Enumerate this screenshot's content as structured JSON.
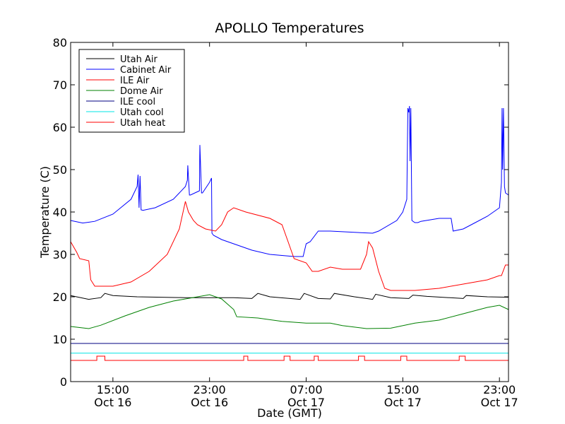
{
  "chart_data": {
    "type": "line",
    "title": "APOLLO Temperatures",
    "xlabel": "Date (GMT)",
    "ylabel": "Temperature (C)",
    "xlim": [
      "Oct 16 11:30",
      "Oct 17 23:45"
    ],
    "ylim": [
      0,
      80
    ],
    "grid": false,
    "legend_position": "top-left",
    "x_ticks": [
      {
        "time": "Oct 16 15:00",
        "label_top": "15:00",
        "label_bottom": "Oct 16"
      },
      {
        "time": "Oct 16 23:00",
        "label_top": "23:00",
        "label_bottom": "Oct 16"
      },
      {
        "time": "Oct 17 07:00",
        "label_top": "07:00",
        "label_bottom": "Oct 17"
      },
      {
        "time": "Oct 17 15:00",
        "label_top": "15:00",
        "label_bottom": "Oct 17"
      },
      {
        "time": "Oct 17 23:00",
        "label_top": "23:00",
        "label_bottom": "Oct 17"
      }
    ],
    "y_ticks": [
      "0",
      "10",
      "20",
      "30",
      "40",
      "50",
      "60",
      "70",
      "80"
    ],
    "series": [
      {
        "name": "Utah Air",
        "color": "#000000",
        "x": [
          "Oct 16 11:30",
          "Oct 16 13:00",
          "Oct 16 14:00",
          "Oct 16 14:20",
          "Oct 16 15:00",
          "Oct 16 17:00",
          "Oct 16 19:00",
          "Oct 16 21:00",
          "Oct 16 23:00",
          "Oct 17 01:00",
          "Oct 17 02:30",
          "Oct 17 03:00",
          "Oct 17 04:00",
          "Oct 17 06:30",
          "Oct 17 06:50",
          "Oct 17 08:00",
          "Oct 17 09:00",
          "Oct 17 09:20",
          "Oct 17 11:00",
          "Oct 17 12:30",
          "Oct 17 12:45",
          "Oct 17 14:00",
          "Oct 17 15:30",
          "Oct 17 15:50",
          "Oct 17 17:00",
          "Oct 17 20:00",
          "Oct 17 20:15",
          "Oct 17 22:00",
          "Oct 17 23:45"
        ],
        "y": [
          20.3,
          19.4,
          19.8,
          20.8,
          20.3,
          20.0,
          19.9,
          19.8,
          19.8,
          19.8,
          19.6,
          20.8,
          20.0,
          19.4,
          20.8,
          19.6,
          19.5,
          20.8,
          20.0,
          19.4,
          20.6,
          19.8,
          19.6,
          20.4,
          20.1,
          19.6,
          20.3,
          20.0,
          19.9
        ]
      },
      {
        "name": "Cabinet Air",
        "color": "#0000ff",
        "x": [
          "Oct 16 11:30",
          "Oct 16 12:30",
          "Oct 16 13:30",
          "Oct 16 15:00",
          "Oct 16 16:30",
          "Oct 16 17:00",
          "Oct 16 17:05",
          "Oct 16 17:10",
          "Oct 16 17:15",
          "Oct 16 17:20",
          "Oct 16 17:30",
          "Oct 16 18:30",
          "Oct 16 20:00",
          "Oct 16 21:00",
          "Oct 16 21:10",
          "Oct 16 21:12",
          "Oct 16 21:20",
          "Oct 16 21:25",
          "Oct 16 22:10",
          "Oct 16 22:12",
          "Oct 16 22:20",
          "Oct 16 22:25",
          "Oct 16 23:00",
          "Oct 16 23:10",
          "Oct 16 23:12",
          "Oct 16 23:20",
          "Oct 17 00:00",
          "Oct 17 01:00",
          "Oct 17 02:30",
          "Oct 17 04:00",
          "Oct 17 06:00",
          "Oct 17 06:45",
          "Oct 17 07:00",
          "Oct 17 07:20",
          "Oct 17 08:00",
          "Oct 17 09:00",
          "Oct 17 11:00",
          "Oct 17 12:30",
          "Oct 17 13:00",
          "Oct 17 14:30",
          "Oct 17 15:00",
          "Oct 17 15:20",
          "Oct 17 15:25",
          "Oct 17 15:30",
          "Oct 17 15:33",
          "Oct 17 15:36",
          "Oct 17 15:40",
          "Oct 17 15:45",
          "Oct 17 16:00",
          "Oct 17 16:15",
          "Oct 17 16:30",
          "Oct 17 18:00",
          "Oct 17 19:00",
          "Oct 17 19:10",
          "Oct 17 20:00",
          "Oct 17 21:00",
          "Oct 17 22:00",
          "Oct 17 23:00",
          "Oct 17 23:10",
          "Oct 17 23:13",
          "Oct 17 23:16",
          "Oct 17 23:20",
          "Oct 17 23:25",
          "Oct 17 23:30",
          "Oct 17 23:45"
        ],
        "y": [
          38.0,
          37.4,
          37.8,
          39.5,
          43.0,
          46.0,
          48.8,
          41.0,
          48.5,
          40.5,
          40.4,
          41.0,
          43.0,
          46.0,
          47.5,
          51.0,
          44.0,
          44.0,
          45.0,
          55.8,
          44.5,
          44.5,
          47.0,
          48.0,
          35.0,
          34.5,
          33.5,
          32.5,
          31.0,
          30.0,
          29.5,
          29.5,
          32.5,
          33.0,
          35.5,
          35.5,
          35.2,
          35.0,
          35.5,
          38.0,
          40.0,
          43.0,
          64.5,
          63.5,
          65.0,
          52.0,
          64.5,
          38.0,
          37.5,
          37.5,
          37.8,
          38.5,
          38.5,
          35.5,
          36.0,
          37.5,
          39.0,
          41.0,
          47.0,
          64.5,
          50.0,
          64.5,
          46.0,
          44.5,
          44.0
        ]
      },
      {
        "name": "ILE Air",
        "color": "#ff0000",
        "x": [
          "Oct 16 11:30",
          "Oct 16 12:00",
          "Oct 16 12:15",
          "Oct 16 13:00",
          "Oct 16 13:10",
          "Oct 16 13:30",
          "Oct 16 15:00",
          "Oct 16 16:30",
          "Oct 16 18:00",
          "Oct 16 19:30",
          "Oct 16 20:30",
          "Oct 16 21:00",
          "Oct 16 21:15",
          "Oct 16 21:40",
          "Oct 16 22:00",
          "Oct 16 22:40",
          "Oct 16 23:30",
          "Oct 17 00:00",
          "Oct 17 00:30",
          "Oct 17 01:00",
          "Oct 17 02:00",
          "Oct 17 04:00",
          "Oct 17 05:00",
          "Oct 17 05:30",
          "Oct 17 06:00",
          "Oct 17 07:00",
          "Oct 17 07:30",
          "Oct 17 08:00",
          "Oct 17 09:00",
          "Oct 17 10:00",
          "Oct 17 11:00",
          "Oct 17 11:30",
          "Oct 17 12:00",
          "Oct 17 12:10",
          "Oct 17 12:30",
          "Oct 17 13:00",
          "Oct 17 13:30",
          "Oct 17 14:00",
          "Oct 17 16:00",
          "Oct 17 18:00",
          "Oct 17 20:00",
          "Oct 17 22:00",
          "Oct 17 23:00",
          "Oct 17 23:10",
          "Oct 17 23:30",
          "Oct 17 23:45"
        ],
        "y": [
          33.0,
          30.5,
          29.0,
          28.5,
          24.0,
          22.5,
          22.5,
          23.5,
          26.0,
          30.0,
          36.0,
          42.5,
          40.0,
          38.0,
          37.0,
          36.0,
          35.5,
          37.0,
          40.0,
          41.0,
          40.0,
          38.5,
          37.0,
          33.0,
          29.0,
          28.0,
          26.0,
          26.0,
          27.0,
          26.5,
          26.5,
          26.5,
          30.0,
          33.0,
          31.5,
          26.0,
          22.0,
          21.5,
          21.5,
          22.0,
          23.0,
          24.0,
          25.0,
          25.0,
          27.5,
          27.5
        ]
      },
      {
        "name": "Dome Air",
        "color": "#008000",
        "x": [
          "Oct 16 11:30",
          "Oct 16 13:00",
          "Oct 16 14:00",
          "Oct 16 16:00",
          "Oct 16 18:00",
          "Oct 16 20:00",
          "Oct 16 22:00",
          "Oct 16 23:00",
          "Oct 17 00:00",
          "Oct 17 01:00",
          "Oct 17 01:15",
          "Oct 17 03:00",
          "Oct 17 05:00",
          "Oct 17 07:00",
          "Oct 17 09:00",
          "Oct 17 10:00",
          "Oct 17 12:00",
          "Oct 17 14:00",
          "Oct 17 16:00",
          "Oct 17 18:00",
          "Oct 17 20:00",
          "Oct 17 22:00",
          "Oct 17 23:00",
          "Oct 17 23:45"
        ],
        "y": [
          13.0,
          12.5,
          13.3,
          15.5,
          17.5,
          19.0,
          20.0,
          20.5,
          19.5,
          17.0,
          15.3,
          15.0,
          14.2,
          13.8,
          13.8,
          13.2,
          12.5,
          12.6,
          13.8,
          14.5,
          16.0,
          17.5,
          18.0,
          17.0
        ]
      },
      {
        "name": "ILE cool",
        "color": "#000080",
        "x": [
          "Oct 16 11:30",
          "Oct 17 23:45"
        ],
        "y": [
          9.0,
          9.0
        ]
      },
      {
        "name": "Utah cool",
        "color": "#00e5e5",
        "x": [
          "Oct 16 11:30",
          "Oct 17 23:45"
        ],
        "y": [
          6.7,
          6.7
        ]
      },
      {
        "name": "Utah heat",
        "color": "#ff0000",
        "x": [
          "Oct 16 11:30",
          "Oct 16 13:40",
          "Oct 16 13:40",
          "Oct 16 14:20",
          "Oct 16 14:20",
          "Oct 17 01:50",
          "Oct 17 01:50",
          "Oct 17 02:10",
          "Oct 17 02:10",
          "Oct 17 05:10",
          "Oct 17 05:10",
          "Oct 17 05:40",
          "Oct 17 05:40",
          "Oct 17 07:40",
          "Oct 17 07:40",
          "Oct 17 08:00",
          "Oct 17 08:00",
          "Oct 17 11:20",
          "Oct 17 11:20",
          "Oct 17 11:50",
          "Oct 17 11:50",
          "Oct 17 14:50",
          "Oct 17 14:50",
          "Oct 17 15:20",
          "Oct 17 15:20",
          "Oct 17 19:40",
          "Oct 17 19:40",
          "Oct 17 20:10",
          "Oct 17 20:10",
          "Oct 17 23:45"
        ],
        "y": [
          5,
          5,
          6,
          6,
          5,
          5,
          6,
          6,
          5,
          5,
          6,
          6,
          5,
          5,
          6,
          6,
          5,
          5,
          6,
          6,
          5,
          5,
          6,
          6,
          5,
          5,
          6,
          6,
          5,
          5
        ]
      }
    ]
  }
}
